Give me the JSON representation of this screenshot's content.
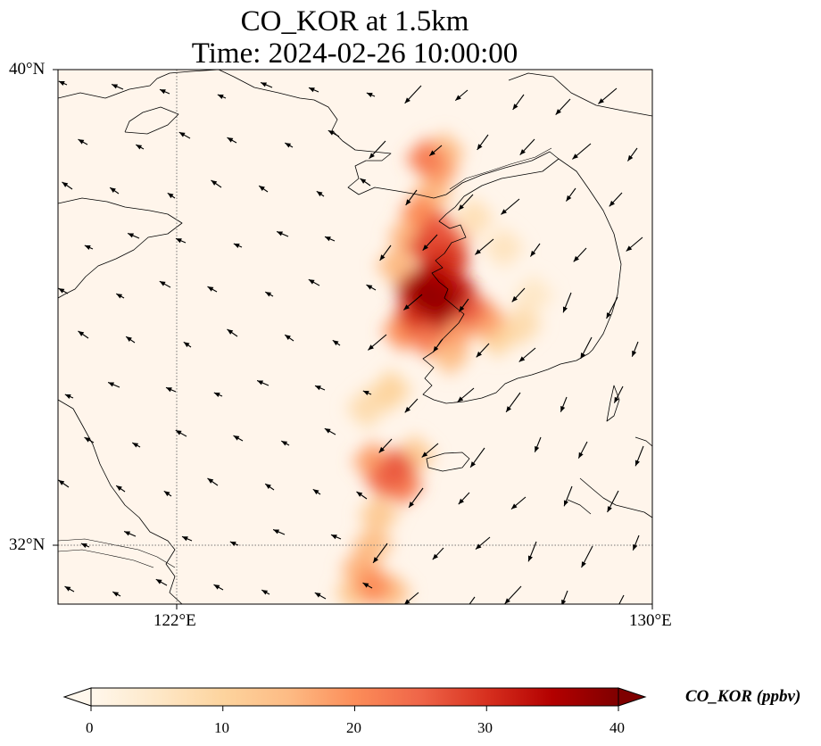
{
  "title": {
    "line1": "CO_KOR at 1.5km",
    "line2": "Time: 2024-02-26 10:00:00"
  },
  "map": {
    "extent": {
      "lon_min": 120,
      "lon_max": 130,
      "lat_min": 31,
      "lat_max": 40
    },
    "gridlines": "dotted",
    "background_color": "#fff5eb",
    "lat_labels": [
      "40°N",
      "32°N"
    ],
    "lon_labels": [
      "122°E",
      "130°E"
    ]
  },
  "colorbar": {
    "label": "CO_KOR (ppbv)",
    "colormap": "OrRd",
    "range": [
      0,
      40
    ],
    "extend": "both",
    "ticks": [
      "0",
      "10",
      "20",
      "30",
      "40"
    ],
    "colors": [
      "#fff7ec",
      "#fee8c8",
      "#fdd49e",
      "#fdbb84",
      "#fc8d59",
      "#ef6548",
      "#d7301f",
      "#b30000",
      "#7f0000"
    ]
  },
  "plume_cells": [
    {
      "lon": 126.2,
      "lat": 36.2,
      "v": 38
    },
    {
      "lon": 126.5,
      "lat": 36.1,
      "v": 37
    },
    {
      "lon": 126.0,
      "lat": 36.3,
      "v": 34
    },
    {
      "lon": 126.3,
      "lat": 36.5,
      "v": 35
    },
    {
      "lon": 126.7,
      "lat": 36.3,
      "v": 33
    },
    {
      "lon": 126.4,
      "lat": 35.9,
      "v": 33
    },
    {
      "lon": 126.0,
      "lat": 35.9,
      "v": 30
    },
    {
      "lon": 126.9,
      "lat": 36.0,
      "v": 26
    },
    {
      "lon": 127.2,
      "lat": 35.8,
      "v": 18
    },
    {
      "lon": 126.6,
      "lat": 36.8,
      "v": 30
    },
    {
      "lon": 126.2,
      "lat": 37.0,
      "v": 28
    },
    {
      "lon": 126.4,
      "lat": 37.3,
      "v": 26
    },
    {
      "lon": 126.1,
      "lat": 37.6,
      "v": 20
    },
    {
      "lon": 126.6,
      "lat": 37.1,
      "v": 24
    },
    {
      "lon": 126.3,
      "lat": 37.9,
      "v": 14
    },
    {
      "lon": 126.2,
      "lat": 38.5,
      "v": 22
    },
    {
      "lon": 126.4,
      "lat": 38.3,
      "v": 18
    },
    {
      "lon": 126.5,
      "lat": 38.6,
      "v": 15
    },
    {
      "lon": 125.9,
      "lat": 37.2,
      "v": 16
    },
    {
      "lon": 125.7,
      "lat": 36.7,
      "v": 15
    },
    {
      "lon": 125.8,
      "lat": 35.6,
      "v": 20
    },
    {
      "lon": 126.2,
      "lat": 35.5,
      "v": 22
    },
    {
      "lon": 126.7,
      "lat": 35.6,
      "v": 18
    },
    {
      "lon": 127.4,
      "lat": 35.5,
      "v": 10
    },
    {
      "lon": 127.8,
      "lat": 35.7,
      "v": 8
    },
    {
      "lon": 126.6,
      "lat": 35.2,
      "v": 14
    },
    {
      "lon": 125.7,
      "lat": 33.3,
      "v": 26
    },
    {
      "lon": 125.5,
      "lat": 33.1,
      "v": 24
    },
    {
      "lon": 125.8,
      "lat": 33.0,
      "v": 22
    },
    {
      "lon": 125.3,
      "lat": 33.4,
      "v": 18
    },
    {
      "lon": 126.0,
      "lat": 33.5,
      "v": 12
    },
    {
      "lon": 125.4,
      "lat": 32.5,
      "v": 12
    },
    {
      "lon": 125.3,
      "lat": 32.0,
      "v": 14
    },
    {
      "lon": 125.1,
      "lat": 31.6,
      "v": 16
    },
    {
      "lon": 125.3,
      "lat": 31.3,
      "v": 20
    },
    {
      "lon": 125.6,
      "lat": 31.2,
      "v": 14
    },
    {
      "lon": 125.0,
      "lat": 31.2,
      "v": 12
    },
    {
      "lon": 125.2,
      "lat": 34.3,
      "v": 8
    },
    {
      "lon": 125.6,
      "lat": 34.6,
      "v": 10
    },
    {
      "lon": 127.0,
      "lat": 37.5,
      "v": 7
    },
    {
      "lon": 127.5,
      "lat": 37.0,
      "v": 6
    },
    {
      "lon": 128.0,
      "lat": 36.2,
      "v": 5
    }
  ]
}
